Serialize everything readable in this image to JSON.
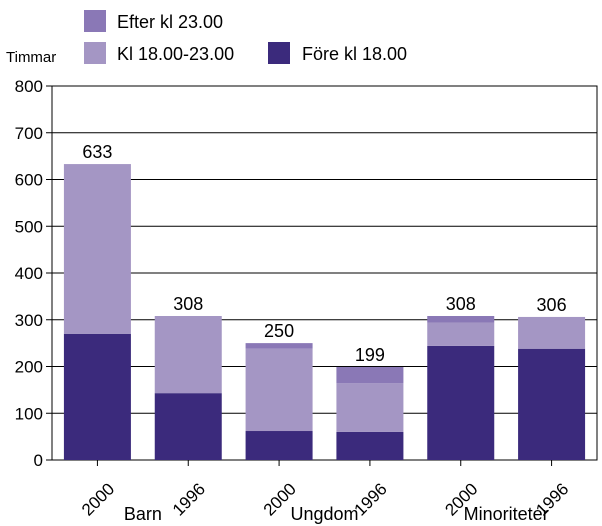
{
  "chart_data": {
    "type": "bar",
    "stacked": true,
    "ylabel": "Timmar",
    "ylim": [
      0,
      800
    ],
    "yticks": [
      0,
      100,
      200,
      300,
      400,
      500,
      600,
      700,
      800
    ],
    "grid": true,
    "legend_position": "top",
    "categories": [
      "2000",
      "1996",
      "2000",
      "1996",
      "2000",
      "1996"
    ],
    "groups": [
      {
        "label": "Barn",
        "categories": [
          0,
          1
        ]
      },
      {
        "label": "Ungdom",
        "categories": [
          2,
          3
        ]
      },
      {
        "label": "Minoriteter",
        "categories": [
          4,
          5
        ]
      }
    ],
    "series": [
      {
        "name": "Före kl 18.00",
        "color": "#3b2a7c",
        "values": [
          270,
          143,
          62,
          60,
          244,
          238
        ]
      },
      {
        "name": "Kl 18.00-23.00",
        "color": "#a496c4",
        "values": [
          363,
          165,
          176,
          104,
          50,
          68
        ]
      },
      {
        "name": "Efter kl 23.00",
        "color": "#8a78b6",
        "values": [
          0,
          0,
          12,
          35,
          14,
          0
        ]
      }
    ],
    "totals": [
      633,
      308,
      250,
      199,
      308,
      306
    ]
  }
}
